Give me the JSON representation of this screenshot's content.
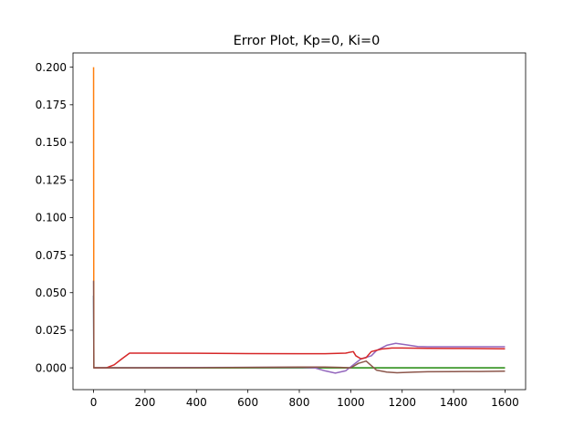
{
  "chart_data": {
    "type": "line",
    "title": "Error Plot, Kp=0, Ki=0",
    "xlabel": "",
    "ylabel": "",
    "xlim": [
      -80,
      1680
    ],
    "ylim": [
      -0.0145,
      0.2095
    ],
    "xticks": [
      0,
      200,
      400,
      600,
      800,
      1000,
      1200,
      1400,
      1600
    ],
    "xtick_labels": [
      "0",
      "200",
      "400",
      "600",
      "800",
      "1000",
      "1200",
      "1400",
      "1600"
    ],
    "yticks": [
      0.0,
      0.025,
      0.05,
      0.075,
      0.1,
      0.125,
      0.15,
      0.175,
      0.2
    ],
    "ytick_labels": [
      "0.000",
      "0.025",
      "0.050",
      "0.075",
      "0.100",
      "0.125",
      "0.150",
      "0.175",
      "0.200"
    ],
    "grid": false,
    "legend": false,
    "series": [
      {
        "color": "#1f77b4",
        "points": [
          [
            0,
            0.048
          ],
          [
            1,
            0.0
          ],
          [
            100,
            0.0
          ],
          [
            500,
            0.0
          ],
          [
            900,
            0.0
          ],
          [
            1000,
            0.0
          ],
          [
            1100,
            0.0
          ],
          [
            1200,
            0.0
          ],
          [
            1400,
            0.0
          ],
          [
            1600,
            0.0
          ]
        ]
      },
      {
        "color": "#ff7f0e",
        "points": [
          [
            0,
            0.2
          ],
          [
            1,
            0.0
          ],
          [
            100,
            0.0
          ],
          [
            500,
            0.0
          ],
          [
            1000,
            0.0
          ],
          [
            1600,
            0.0
          ]
        ]
      },
      {
        "color": "#2ca02c",
        "points": [
          [
            0,
            0.0
          ],
          [
            200,
            0.0
          ],
          [
            400,
            0.0
          ],
          [
            600,
            0.0
          ],
          [
            800,
            0.0
          ],
          [
            1000,
            0.0
          ],
          [
            1200,
            0.0
          ],
          [
            1400,
            0.0
          ],
          [
            1600,
            0.0
          ]
        ]
      },
      {
        "color": "#9467bd",
        "points": [
          [
            0,
            0.0
          ],
          [
            200,
            0.0001
          ],
          [
            400,
            0.0002
          ],
          [
            600,
            0.0003
          ],
          [
            800,
            0.0004
          ],
          [
            860,
            0.0
          ],
          [
            900,
            -0.002
          ],
          [
            940,
            -0.0035
          ],
          [
            980,
            -0.002
          ],
          [
            1010,
            0.002
          ],
          [
            1040,
            0.006
          ],
          [
            1080,
            0.008
          ],
          [
            1100,
            0.0115
          ],
          [
            1140,
            0.015
          ],
          [
            1175,
            0.0163
          ],
          [
            1210,
            0.0155
          ],
          [
            1260,
            0.0142
          ],
          [
            1300,
            0.014
          ],
          [
            1400,
            0.014
          ],
          [
            1500,
            0.014
          ],
          [
            1600,
            0.014
          ]
        ]
      },
      {
        "color": "#d62728",
        "points": [
          [
            0,
            0.0
          ],
          [
            50,
            0.0
          ],
          [
            80,
            0.002
          ],
          [
            110,
            0.006
          ],
          [
            140,
            0.0098
          ],
          [
            200,
            0.0098
          ],
          [
            400,
            0.0097
          ],
          [
            600,
            0.0095
          ],
          [
            800,
            0.0094
          ],
          [
            900,
            0.0094
          ],
          [
            980,
            0.0098
          ],
          [
            1010,
            0.0108
          ],
          [
            1020,
            0.008
          ],
          [
            1040,
            0.006
          ],
          [
            1060,
            0.0068
          ],
          [
            1080,
            0.0108
          ],
          [
            1120,
            0.0125
          ],
          [
            1160,
            0.0132
          ],
          [
            1200,
            0.0132
          ],
          [
            1300,
            0.013
          ],
          [
            1400,
            0.0129
          ],
          [
            1500,
            0.0128
          ],
          [
            1600,
            0.0127
          ]
        ]
      },
      {
        "color": "#8c564b",
        "points": [
          [
            0,
            0.058
          ],
          [
            1,
            0.0
          ],
          [
            200,
            0.0
          ],
          [
            400,
            0.0001
          ],
          [
            600,
            0.0003
          ],
          [
            800,
            0.0005
          ],
          [
            900,
            0.0005
          ],
          [
            960,
            0.0003
          ],
          [
            1000,
            0.0
          ],
          [
            1030,
            0.003
          ],
          [
            1060,
            0.0045
          ],
          [
            1080,
            0.0015
          ],
          [
            1100,
            -0.0015
          ],
          [
            1140,
            -0.0028
          ],
          [
            1180,
            -0.0033
          ],
          [
            1250,
            -0.0028
          ],
          [
            1300,
            -0.0026
          ],
          [
            1400,
            -0.0025
          ],
          [
            1500,
            -0.0024
          ],
          [
            1600,
            -0.0022
          ]
        ]
      }
    ]
  }
}
